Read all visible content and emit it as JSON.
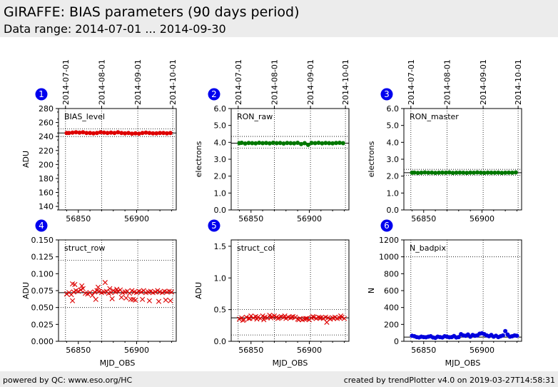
{
  "header": {
    "title": "GIRAFFE: BIAS parameters (90 days period)",
    "subtitle": "Data range: 2014-07-01 ... 2014-09-30"
  },
  "footer": {
    "left": "powered by QC: www.eso.org/HC",
    "right": "created by trendPlotter v4.0 on 2019-03-27T14:58:31"
  },
  "top_date_ticks": [
    {
      "label": "2014-07-01",
      "mjd": 56839
    },
    {
      "label": "2014-08-01",
      "mjd": 56870
    },
    {
      "label": "2014-09-01",
      "mjd": 56901
    },
    {
      "label": "2014-10-01",
      "mjd": 56931
    }
  ],
  "colors": {
    "red": "#dd0000",
    "green": "#007700",
    "blue": "#0000dd",
    "badge": "#0000ee"
  },
  "chart_data": [
    {
      "id": 1,
      "badge": "1",
      "type": "scatter",
      "label": "BIAS_level",
      "ylabel": "ADU",
      "xlabel": "",
      "xlim": [
        56833,
        56934
      ],
      "ylim": [
        135,
        280
      ],
      "yticks": [
        140,
        160,
        180,
        200,
        220,
        240,
        260,
        280
      ],
      "ytick_labels": [
        "140",
        "160",
        "180",
        "200",
        "220",
        "240",
        "260",
        "280"
      ],
      "yminor": 10,
      "xticks": [
        56850,
        56900
      ],
      "xtick_labels": [
        "56850",
        "56900"
      ],
      "ref_line": 245,
      "dotted_lines": [
        240,
        251
      ],
      "marker": "circle",
      "color": "#dd0000",
      "x": [
        56840,
        56842,
        56845,
        56848,
        56851,
        56854,
        56857,
        56860,
        56863,
        56866,
        56869,
        56872,
        56875,
        56878,
        56881,
        56884,
        56887,
        56890,
        56893,
        56896,
        56899,
        56902,
        56905,
        56908,
        56911,
        56914,
        56917,
        56920,
        56923,
        56926,
        56929
      ],
      "values": [
        245,
        245,
        245.5,
        246,
        245.5,
        246,
        245,
        245,
        244.5,
        245,
        246,
        245.5,
        245,
        245.5,
        245,
        246,
        245,
        244.5,
        245,
        244,
        244.5,
        244,
        245,
        245.5,
        245,
        244.5,
        244.5,
        245,
        245,
        244.5,
        245
      ]
    },
    {
      "id": 2,
      "badge": "2",
      "type": "scatter",
      "label": "RON_raw",
      "ylabel": "electrons",
      "xlabel": "",
      "xlim": [
        56833,
        56934
      ],
      "ylim": [
        0,
        6
      ],
      "yticks": [
        0,
        1,
        2,
        3,
        4,
        5,
        6
      ],
      "ytick_labels": [
        "0.0",
        "1.0",
        "2.0",
        "3.0",
        "4.0",
        "5.0",
        "6.0"
      ],
      "yminor": null,
      "xticks": [
        56850,
        56900
      ],
      "xtick_labels": [
        "56850",
        "56900"
      ],
      "ref_line": 3.95,
      "dotted_lines": [
        3.65,
        4.35
      ],
      "marker": "circle",
      "color": "#007700",
      "x": [
        56840,
        56842,
        56845,
        56848,
        56851,
        56854,
        56857,
        56860,
        56863,
        56866,
        56869,
        56872,
        56875,
        56878,
        56881,
        56884,
        56887,
        56890,
        56893,
        56896,
        56899,
        56902,
        56905,
        56908,
        56911,
        56914,
        56917,
        56920,
        56923,
        56926,
        56929
      ],
      "values": [
        3.95,
        3.97,
        3.93,
        3.96,
        3.95,
        3.94,
        3.97,
        3.95,
        3.96,
        3.94,
        3.97,
        3.95,
        3.96,
        3.93,
        3.96,
        3.95,
        3.94,
        3.97,
        3.9,
        3.95,
        3.85,
        3.96,
        3.95,
        3.97,
        3.94,
        3.96,
        3.95,
        3.94,
        3.96,
        3.97,
        3.95
      ]
    },
    {
      "id": 3,
      "badge": "3",
      "type": "scatter",
      "label": "RON_master",
      "ylabel": "electrons",
      "xlabel": "",
      "xlim": [
        56833,
        56934
      ],
      "ylim": [
        0,
        6
      ],
      "yticks": [
        0,
        1,
        2,
        3,
        4,
        5,
        6
      ],
      "ytick_labels": [
        "0.0",
        "1.0",
        "2.0",
        "3.0",
        "4.0",
        "5.0",
        "6.0"
      ],
      "yminor": null,
      "xticks": [
        56850,
        56900
      ],
      "xtick_labels": [
        "56850",
        "56900"
      ],
      "ref_line": 2.2,
      "dotted_lines": [
        2.05,
        2.4
      ],
      "marker": "circle",
      "color": "#007700",
      "x": [
        56840,
        56842,
        56845,
        56848,
        56851,
        56854,
        56857,
        56860,
        56863,
        56866,
        56869,
        56872,
        56875,
        56878,
        56881,
        56884,
        56887,
        56890,
        56893,
        56896,
        56899,
        56902,
        56905,
        56908,
        56911,
        56914,
        56917,
        56920,
        56923,
        56926,
        56929
      ],
      "values": [
        2.2,
        2.21,
        2.19,
        2.2,
        2.22,
        2.2,
        2.21,
        2.19,
        2.2,
        2.21,
        2.2,
        2.22,
        2.19,
        2.2,
        2.21,
        2.2,
        2.19,
        2.21,
        2.2,
        2.22,
        2.2,
        2.19,
        2.21,
        2.2,
        2.2,
        2.21,
        2.19,
        2.2,
        2.21,
        2.2,
        2.22
      ]
    },
    {
      "id": 4,
      "badge": "4",
      "type": "scatter",
      "label": "struct_row",
      "ylabel": "ADU",
      "xlabel": "MJD_OBS",
      "xlim": [
        56833,
        56934
      ],
      "ylim": [
        0,
        0.15
      ],
      "yticks": [
        0,
        0.025,
        0.05,
        0.075,
        0.1,
        0.125,
        0.15
      ],
      "ytick_labels": [
        "0.000",
        "0.025",
        "0.050",
        "0.075",
        "0.100",
        "0.125",
        "0.150"
      ],
      "yminor": null,
      "xticks": [
        56850,
        56900
      ],
      "xtick_labels": [
        "56850",
        "56900"
      ],
      "ref_line": 0.072,
      "dotted_lines": [
        0.05,
        0.12
      ],
      "marker": "x",
      "color": "#dd0000",
      "x": [
        56840,
        56842,
        56844,
        56846,
        56848,
        56850,
        56852,
        56854,
        56856,
        56858,
        56860,
        56862,
        56864,
        56866,
        56868,
        56870,
        56872,
        56874,
        56876,
        56878,
        56880,
        56882,
        56884,
        56886,
        56888,
        56890,
        56892,
        56894,
        56896,
        56898,
        56900,
        56902,
        56904,
        56906,
        56908,
        56910,
        56912,
        56914,
        56916,
        56918,
        56920,
        56922,
        56924,
        56926,
        56928,
        56930,
        56845,
        56847,
        56853,
        56867,
        56873,
        56877,
        56883,
        56887,
        56891,
        56895,
        56899,
        56905,
        56911,
        56919,
        56925,
        56929,
        56845,
        56865,
        56879,
        56897
      ],
      "values": [
        0.07,
        0.072,
        0.069,
        0.073,
        0.075,
        0.074,
        0.076,
        0.078,
        0.071,
        0.07,
        0.072,
        0.068,
        0.073,
        0.075,
        0.074,
        0.072,
        0.073,
        0.074,
        0.071,
        0.072,
        0.075,
        0.073,
        0.074,
        0.076,
        0.072,
        0.073,
        0.074,
        0.071,
        0.075,
        0.073,
        0.072,
        0.074,
        0.073,
        0.075,
        0.072,
        0.073,
        0.074,
        0.072,
        0.073,
        0.075,
        0.073,
        0.072,
        0.074,
        0.073,
        0.074,
        0.073,
        0.085,
        0.084,
        0.082,
        0.08,
        0.087,
        0.078,
        0.077,
        0.065,
        0.064,
        0.062,
        0.061,
        0.062,
        0.06,
        0.059,
        0.061,
        0.06,
        0.06,
        0.062,
        0.063,
        0.062
      ]
    },
    {
      "id": 5,
      "badge": "5",
      "type": "scatter",
      "label": "struct_col",
      "ylabel": "ADU",
      "xlabel": "MJD_OBS",
      "xlim": [
        56833,
        56934
      ],
      "ylim": [
        0,
        1.6
      ],
      "yticks": [
        0,
        0.5,
        1.0,
        1.5
      ],
      "ytick_labels": [
        "0.0",
        "0.5",
        "1.0",
        "1.5"
      ],
      "yminor": null,
      "xticks": [
        56850,
        56900
      ],
      "xtick_labels": [
        "56850",
        "56900"
      ],
      "ref_line": 0.37,
      "dotted_lines": [
        0.1,
        0.5
      ],
      "marker": "x",
      "color": "#dd0000",
      "x": [
        56840,
        56842,
        56844,
        56846,
        56848,
        56850,
        56852,
        56854,
        56856,
        56858,
        56860,
        56862,
        56864,
        56866,
        56868,
        56870,
        56872,
        56874,
        56876,
        56878,
        56880,
        56882,
        56884,
        56886,
        56888,
        56890,
        56892,
        56894,
        56896,
        56898,
        56900,
        56902,
        56904,
        56906,
        56908,
        56910,
        56912,
        56914,
        56916,
        56918,
        56920,
        56922,
        56924,
        56926,
        56928,
        56930,
        56843,
        56849,
        56855,
        56861,
        56867,
        56873,
        56879,
        56885,
        56891,
        56897,
        56903,
        56909,
        56915,
        56921,
        56927
      ],
      "values": [
        0.35,
        0.37,
        0.34,
        0.38,
        0.36,
        0.4,
        0.37,
        0.39,
        0.38,
        0.36,
        0.4,
        0.38,
        0.37,
        0.41,
        0.39,
        0.4,
        0.38,
        0.37,
        0.39,
        0.38,
        0.36,
        0.38,
        0.37,
        0.39,
        0.38,
        0.35,
        0.36,
        0.34,
        0.35,
        0.36,
        0.34,
        0.37,
        0.38,
        0.36,
        0.38,
        0.37,
        0.36,
        0.38,
        0.37,
        0.35,
        0.37,
        0.38,
        0.36,
        0.37,
        0.38,
        0.36,
        0.33,
        0.36,
        0.35,
        0.34,
        0.37,
        0.36,
        0.4,
        0.38,
        0.34,
        0.36,
        0.39,
        0.37,
        0.3,
        0.36,
        0.4
      ]
    },
    {
      "id": 6,
      "badge": "6",
      "type": "scatter",
      "label": "N_badpix",
      "ylabel": "N",
      "xlabel": "MJD_OBS",
      "xlim": [
        56833,
        56934
      ],
      "ylim": [
        0,
        1200
      ],
      "yticks": [
        0,
        200,
        400,
        600,
        800,
        1000,
        1200
      ],
      "ytick_labels": [
        "0",
        "200",
        "400",
        "600",
        "800",
        "1000",
        "1200"
      ],
      "yminor": null,
      "xticks": [
        56850,
        56900
      ],
      "xtick_labels": [
        "56850",
        "56900"
      ],
      "ref_line": 50,
      "dotted_lines": [
        0,
        1000
      ],
      "marker": "circle",
      "color": "#0000dd",
      "x": [
        56840,
        56842,
        56844,
        56846,
        56848,
        56850,
        56852,
        56854,
        56856,
        56858,
        56860,
        56862,
        56864,
        56866,
        56868,
        56870,
        56872,
        56874,
        56876,
        56878,
        56880,
        56882,
        56884,
        56886,
        56888,
        56890,
        56892,
        56894,
        56896,
        56898,
        56900,
        56902,
        56904,
        56906,
        56908,
        56910,
        56912,
        56914,
        56916,
        56918,
        56920,
        56922,
        56924,
        56926,
        56928,
        56930
      ],
      "values": [
        65,
        60,
        50,
        45,
        55,
        50,
        48,
        55,
        60,
        45,
        40,
        55,
        50,
        45,
        60,
        55,
        48,
        50,
        62,
        45,
        50,
        85,
        70,
        65,
        80,
        55,
        75,
        65,
        70,
        90,
        95,
        85,
        70,
        60,
        75,
        55,
        65,
        50,
        60,
        70,
        120,
        80,
        55,
        60,
        70,
        65
      ]
    }
  ]
}
